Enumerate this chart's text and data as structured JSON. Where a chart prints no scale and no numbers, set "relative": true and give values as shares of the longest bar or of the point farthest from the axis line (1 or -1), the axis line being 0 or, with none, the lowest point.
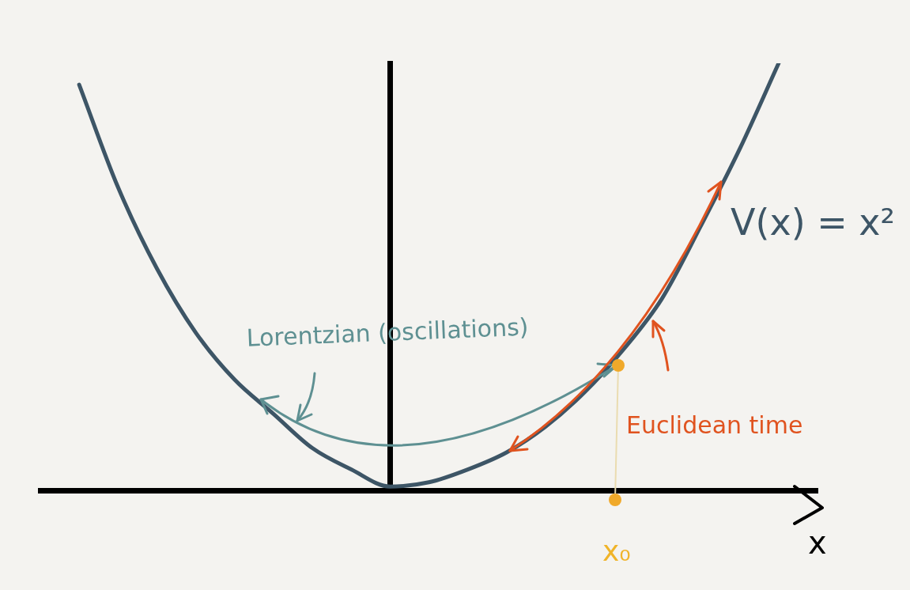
{
  "chart_data": {
    "type": "line",
    "relative": true,
    "xlabel": "x",
    "categories": [
      null,
      null,
      null,
      null,
      null,
      null,
      null,
      null,
      null,
      null,
      null,
      null,
      null,
      null,
      null,
      null,
      null,
      null,
      null,
      null,
      null
    ],
    "series": [
      {
        "name": "V(x) = x²",
        "color": "#3d5566",
        "values": [
          null,
          0.95,
          0.71,
          0.52,
          0.37,
          0.26,
          0.18,
          0.1,
          0.05,
          0.01,
          0.02,
          0.05,
          0.09,
          0.15,
          0.23,
          0.33,
          0.45,
          0.62,
          0.8,
          1,
          null
        ]
      }
    ],
    "annotations": [
      "Lorentzian (oscillations)",
      "Euclidean time",
      "x₀"
    ],
    "grid": false,
    "legend": false,
    "marker": "none"
  }
}
